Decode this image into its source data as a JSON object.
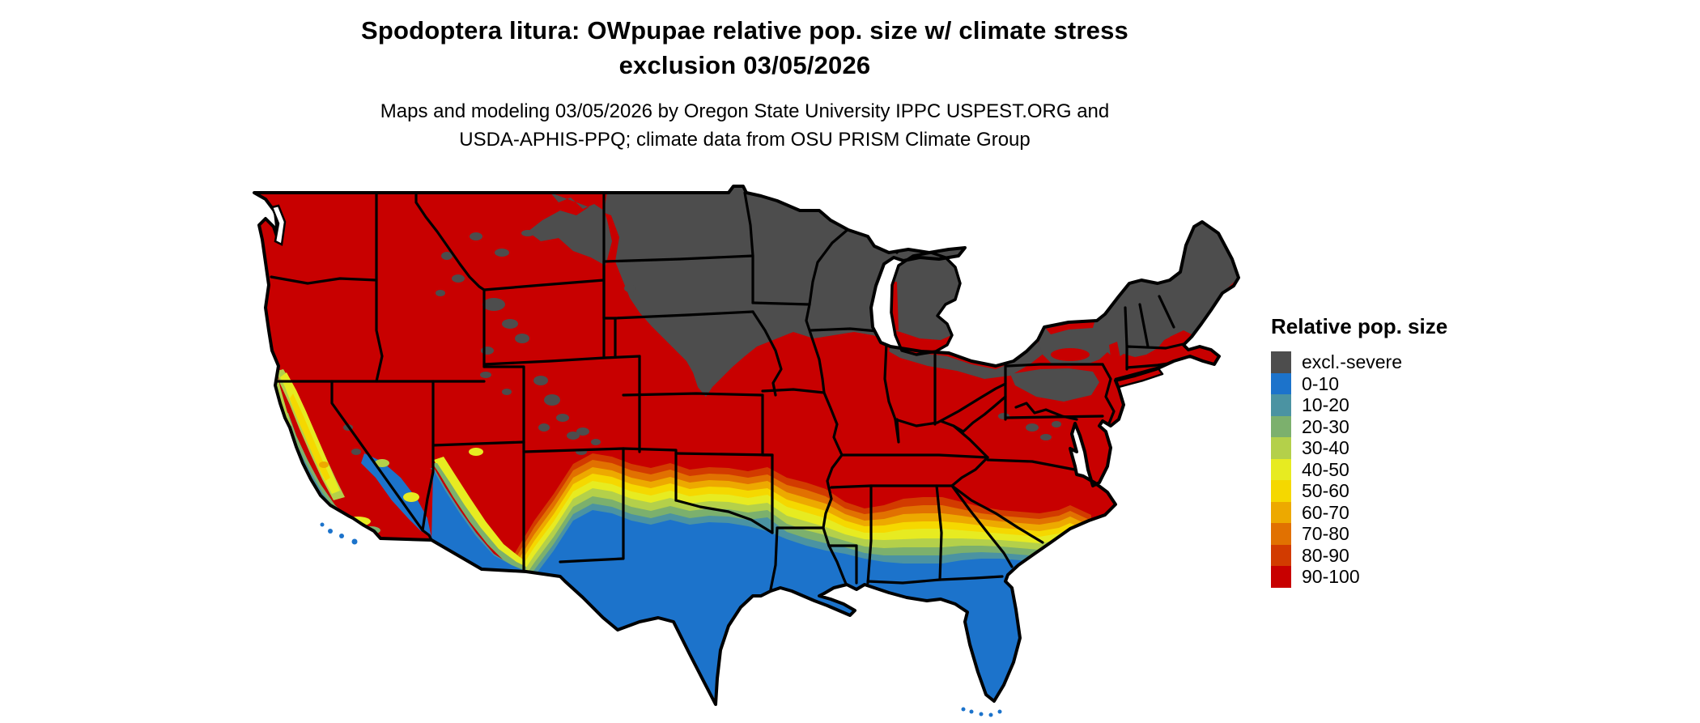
{
  "title": {
    "line1": "Spodoptera litura: OWpupae relative pop. size w/ climate stress",
    "line2": "exclusion 03/05/2026"
  },
  "subtitle": {
    "line1": "Maps and modeling 03/05/2026 by Oregon State University IPPC USPEST.ORG and",
    "line2": "USDA-APHIS-PPQ; climate data from OSU PRISM Climate Group"
  },
  "legend": {
    "title": "Relative pop. size",
    "items": [
      {
        "label": "excl.-severe",
        "color": "#4d4d4d"
      },
      {
        "label": "0-10",
        "color": "#1c73cb"
      },
      {
        "label": "10-20",
        "color": "#4b93a2"
      },
      {
        "label": "20-30",
        "color": "#7cb06d"
      },
      {
        "label": "30-40",
        "color": "#b4d04a"
      },
      {
        "label": "40-50",
        "color": "#e7eb21"
      },
      {
        "label": "50-60",
        "color": "#f5d800"
      },
      {
        "label": "60-70",
        "color": "#eda900"
      },
      {
        "label": "70-80",
        "color": "#e17101"
      },
      {
        "label": "80-90",
        "color": "#d23b00"
      },
      {
        "label": "90-100",
        "color": "#c80000"
      }
    ]
  },
  "map": {
    "region": "Continental United States",
    "border_color": "#000000",
    "water_color": "#ffffff",
    "colors": {
      "excluded": "#4d4d4d",
      "v0_10": "#1c73cb",
      "v10_20": "#4b93a2",
      "v20_30": "#7cb06d",
      "v30_40": "#b4d04a",
      "v40_50": "#e7eb21",
      "v50_60": "#f5d800",
      "v60_70": "#eda900",
      "v70_80": "#e17101",
      "v80_90": "#d23b00",
      "v90_100": "#c80000"
    }
  }
}
